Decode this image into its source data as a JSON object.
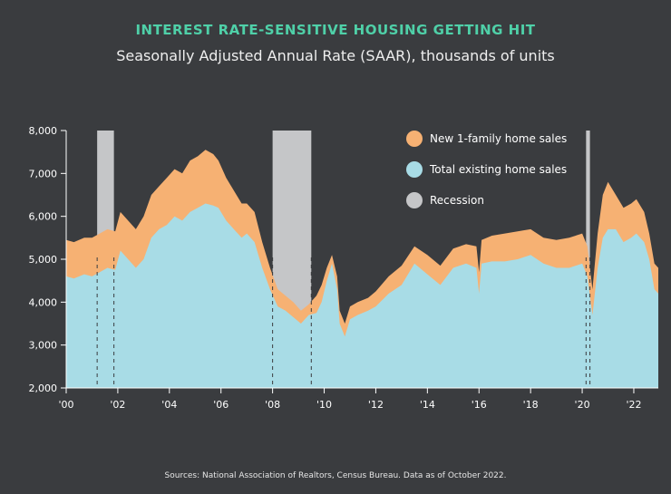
{
  "chart_data": {
    "type": "area",
    "title": "INTEREST RATE-SENSITIVE HOUSING GETTING HIT",
    "subtitle": "Seasonally Adjusted Annual Rate (SAAR), thousands of units",
    "source": "Sources: National Association of Realtors, Census Bureau. Data as of October 2022.",
    "ylim": [
      2000,
      8000
    ],
    "yticks": [
      "2,000",
      "3,000",
      "4,000",
      "5,000",
      "6,000",
      "7,000",
      "8,000"
    ],
    "ytick_values": [
      2000,
      3000,
      4000,
      5000,
      6000,
      7000,
      8000
    ],
    "xlim": [
      2000,
      2022.95
    ],
    "xtick_values": [
      2000,
      2002,
      2004,
      2006,
      2008,
      2010,
      2012,
      2014,
      2016,
      2018,
      2020,
      2022
    ],
    "xticks": [
      "'00",
      "'02",
      "'04",
      "'06",
      "'08",
      "'10",
      "'12",
      "'14",
      "'16",
      "'18",
      "'20",
      "'22"
    ],
    "legend": [
      {
        "label": "New 1-family home sales",
        "color": "#f6b173"
      },
      {
        "label": "Total existing home sales",
        "color": "#a8dce6"
      },
      {
        "label": "Recession",
        "color": "#c5c6c8"
      }
    ],
    "recessions": [
      [
        2001.2,
        2001.85
      ],
      [
        2008.0,
        2009.5
      ],
      [
        2020.15,
        2020.3
      ]
    ],
    "series": [
      {
        "name": "Total existing home sales",
        "color": "#a8dce6",
        "x": [
          2000.0,
          2000.3,
          2000.7,
          2001.0,
          2001.3,
          2001.6,
          2001.9,
          2002.1,
          2002.4,
          2002.7,
          2003.0,
          2003.3,
          2003.6,
          2003.9,
          2004.2,
          2004.5,
          2004.8,
          2005.1,
          2005.4,
          2005.7,
          2005.9,
          2006.2,
          2006.5,
          2006.8,
          2007.0,
          2007.3,
          2007.6,
          2007.9,
          2008.2,
          2008.5,
          2008.8,
          2009.1,
          2009.4,
          2009.7,
          2009.9,
          2010.1,
          2010.3,
          2010.5,
          2010.6,
          2010.8,
          2011.0,
          2011.3,
          2011.7,
          2012.0,
          2012.5,
          2013.0,
          2013.5,
          2014.0,
          2014.5,
          2015.0,
          2015.5,
          2015.9,
          2016.0,
          2016.1,
          2016.5,
          2017.0,
          2017.5,
          2018.0,
          2018.5,
          2019.0,
          2019.5,
          2020.0,
          2020.2,
          2020.4,
          2020.6,
          2020.8,
          2021.0,
          2021.3,
          2021.6,
          2021.9,
          2022.1,
          2022.4,
          2022.6,
          2022.8,
          2022.95
        ],
        "values": [
          4600,
          4550,
          4650,
          4600,
          4700,
          4800,
          4750,
          5200,
          5000,
          4800,
          5000,
          5500,
          5700,
          5800,
          6000,
          5900,
          6100,
          6200,
          6300,
          6250,
          6200,
          5900,
          5700,
          5500,
          5600,
          5400,
          4800,
          4300,
          3900,
          3800,
          3650,
          3500,
          3700,
          3750,
          4000,
          4500,
          4900,
          4300,
          3500,
          3200,
          3600,
          3700,
          3800,
          3900,
          4200,
          4400,
          4900,
          4650,
          4400,
          4800,
          4900,
          4800,
          4200,
          4900,
          4950,
          4950,
          5000,
          5100,
          4900,
          4800,
          4800,
          4900,
          4600,
          3700,
          4800,
          5500,
          5700,
          5700,
          5400,
          5500,
          5600,
          5400,
          5000,
          4300,
          4200
        ]
      },
      {
        "name": "New 1-family home sales",
        "color": "#f6b173",
        "x": [
          2000.0,
          2000.3,
          2000.7,
          2001.0,
          2001.3,
          2001.6,
          2001.9,
          2002.1,
          2002.4,
          2002.7,
          2003.0,
          2003.3,
          2003.6,
          2003.9,
          2004.2,
          2004.5,
          2004.8,
          2005.1,
          2005.4,
          2005.7,
          2005.9,
          2006.2,
          2006.5,
          2006.8,
          2007.0,
          2007.3,
          2007.6,
          2007.9,
          2008.2,
          2008.5,
          2008.8,
          2009.1,
          2009.4,
          2009.7,
          2009.9,
          2010.1,
          2010.3,
          2010.5,
          2010.6,
          2010.8,
          2011.0,
          2011.3,
          2011.7,
          2012.0,
          2012.5,
          2013.0,
          2013.5,
          2014.0,
          2014.5,
          2015.0,
          2015.5,
          2015.9,
          2016.0,
          2016.1,
          2016.5,
          2017.0,
          2017.5,
          2018.0,
          2018.5,
          2019.0,
          2019.5,
          2020.0,
          2020.2,
          2020.4,
          2020.6,
          2020.8,
          2021.0,
          2021.3,
          2021.6,
          2021.9,
          2022.1,
          2022.4,
          2022.6,
          2022.8,
          2022.95
        ],
        "values": [
          5450,
          5400,
          5500,
          5500,
          5600,
          5700,
          5650,
          6100,
          5900,
          5700,
          6000,
          6500,
          6700,
          6900,
          7100,
          7000,
          7300,
          7400,
          7550,
          7450,
          7300,
          6900,
          6600,
          6300,
          6300,
          6100,
          5400,
          4800,
          4300,
          4150,
          4000,
          3800,
          3950,
          4150,
          4400,
          4800,
          5100,
          4600,
          3800,
          3500,
          3900,
          4000,
          4100,
          4250,
          4600,
          4850,
          5300,
          5100,
          4850,
          5250,
          5350,
          5300,
          4700,
          5450,
          5550,
          5600,
          5650,
          5700,
          5500,
          5450,
          5500,
          5600,
          5300,
          4300,
          5600,
          6500,
          6800,
          6500,
          6200,
          6300,
          6400,
          6100,
          5600,
          4900,
          4800
        ]
      }
    ]
  }
}
